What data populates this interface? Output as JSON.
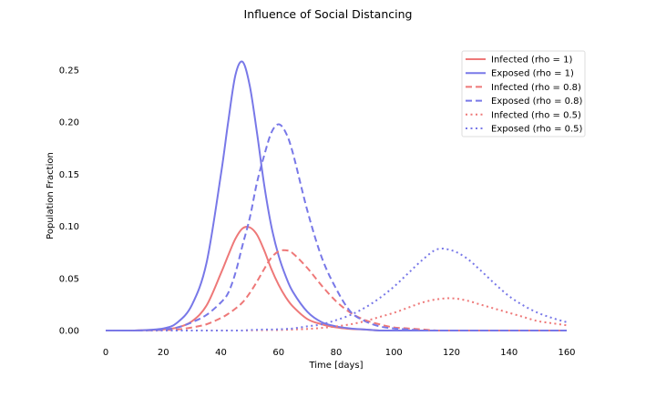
{
  "chart_data": {
    "type": "line",
    "title": "Influence of Social Distancing",
    "xlabel": "Time [days]",
    "ylabel": "Population Fraction",
    "xlim": [
      0,
      160
    ],
    "ylim": [
      0,
      0.25
    ],
    "xticks": [
      0,
      20,
      40,
      60,
      80,
      100,
      120,
      140,
      160
    ],
    "yticks": [
      "0.00",
      "0.05",
      "0.10",
      "0.15",
      "0.20",
      "0.25"
    ],
    "grid": false,
    "legend_position": "top-right",
    "x": [
      0,
      10,
      20,
      25,
      30,
      35,
      40,
      42.5,
      45,
      47.5,
      50,
      52.5,
      55,
      57.5,
      60,
      62.5,
      65,
      70,
      75,
      80,
      85,
      90,
      95,
      100,
      105,
      110,
      115,
      120,
      125,
      130,
      135,
      140,
      145,
      150,
      155,
      160
    ],
    "series": [
      {
        "name": "Infected (rho = 1)",
        "color": "#ee7878",
        "style": "solid",
        "values": [
          0,
          0,
          0.001,
          0.003,
          0.009,
          0.024,
          0.055,
          0.072,
          0.088,
          0.098,
          0.099,
          0.092,
          0.077,
          0.059,
          0.044,
          0.032,
          0.023,
          0.011,
          0.006,
          0.003,
          0.0015,
          0.001,
          0,
          0,
          0,
          0,
          0,
          0,
          0,
          0,
          0,
          0,
          0,
          0,
          0,
          0
        ]
      },
      {
        "name": "Exposed (rho = 1)",
        "color": "#7878e8",
        "style": "solid",
        "values": [
          0,
          0,
          0.002,
          0.008,
          0.025,
          0.065,
          0.15,
          0.2,
          0.245,
          0.258,
          0.235,
          0.19,
          0.14,
          0.1,
          0.072,
          0.052,
          0.037,
          0.018,
          0.008,
          0.004,
          0.002,
          0.001,
          0,
          0,
          0,
          0,
          0,
          0,
          0,
          0,
          0,
          0,
          0,
          0,
          0,
          0
        ]
      },
      {
        "name": "Infected (rho = 0.8)",
        "color": "#ee7878",
        "style": "dashed",
        "values": [
          0,
          0,
          0.0005,
          0.001,
          0.003,
          0.006,
          0.012,
          0.016,
          0.021,
          0.027,
          0.036,
          0.047,
          0.059,
          0.07,
          0.076,
          0.077,
          0.074,
          0.06,
          0.043,
          0.028,
          0.017,
          0.01,
          0.006,
          0.003,
          0.002,
          0.001,
          0,
          0,
          0,
          0,
          0,
          0,
          0,
          0,
          0,
          0
        ]
      },
      {
        "name": "Exposed (rho = 0.8)",
        "color": "#7878e8",
        "style": "dashed",
        "values": [
          0,
          0,
          0.001,
          0.003,
          0.008,
          0.015,
          0.027,
          0.036,
          0.055,
          0.082,
          0.108,
          0.142,
          0.168,
          0.19,
          0.198,
          0.19,
          0.17,
          0.115,
          0.07,
          0.04,
          0.018,
          0.009,
          0.004,
          0.002,
          0.001,
          0,
          0,
          0,
          0,
          0,
          0,
          0,
          0,
          0,
          0,
          0
        ]
      },
      {
        "name": "Infected (rho = 0.5)",
        "color": "#ee7878",
        "style": "dotted",
        "values": [
          0,
          0,
          0,
          0,
          0,
          0,
          0,
          0,
          0,
          0,
          0.0002,
          0.0003,
          0.0004,
          0.0005,
          0.0005,
          0.0007,
          0.001,
          0.0015,
          0.0025,
          0.004,
          0.006,
          0.009,
          0.013,
          0.017,
          0.022,
          0.027,
          0.03,
          0.031,
          0.029,
          0.025,
          0.021,
          0.017,
          0.013,
          0.009,
          0.007,
          0.005
        ]
      },
      {
        "name": "Exposed (rho = 0.5)",
        "color": "#7878e8",
        "style": "dotted",
        "values": [
          0,
          0,
          0,
          0,
          0,
          0,
          0,
          0,
          0,
          0,
          0.0005,
          0.0007,
          0.001,
          0.001,
          0.0012,
          0.0015,
          0.002,
          0.004,
          0.006,
          0.01,
          0.015,
          0.022,
          0.031,
          0.042,
          0.055,
          0.068,
          0.078,
          0.077,
          0.07,
          0.058,
          0.045,
          0.033,
          0.024,
          0.017,
          0.012,
          0.008
        ]
      }
    ]
  }
}
